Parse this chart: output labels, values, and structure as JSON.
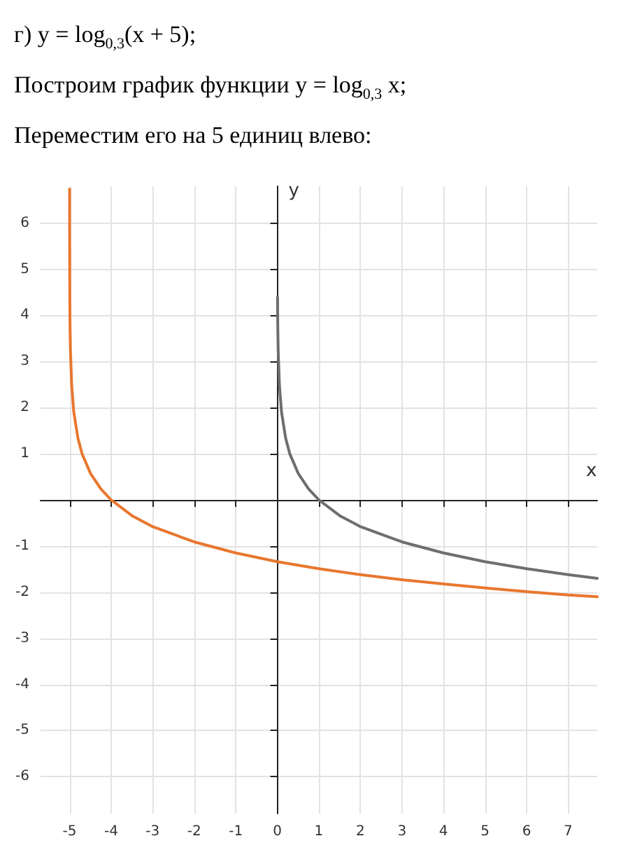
{
  "chart_data": {
    "type": "line",
    "title": "г) y = log$_{0,3}$(x + 5);",
    "subtitle": "Построим график функции y = log$_{0,3}$ x;",
    "annotations": [
      "Переместим его на 5 единиц влево:"
    ],
    "xlabel": "x",
    "ylabel": "y",
    "xlim": [
      -5.7,
      7.7
    ],
    "ylim": [
      -6.8,
      6.8
    ],
    "xticks": [
      -5,
      -4,
      -3,
      -2,
      -1,
      0,
      1,
      2,
      3,
      4,
      5,
      6,
      7
    ],
    "yticks": [
      -6,
      -5,
      -4,
      -3,
      -2,
      -1,
      1,
      2,
      3,
      4,
      5,
      6
    ],
    "grid": true,
    "marker": "none",
    "line_style": "solid",
    "series": [
      {
        "color": "#6e6e6e",
        "x": [
          0.005,
          0.01,
          0.02,
          0.05,
          0.1,
          0.2,
          0.3,
          0.5,
          0.75,
          1,
          1.5,
          2,
          3,
          4,
          5,
          6,
          7,
          7.7
        ],
        "values": [
          4.4,
          3.82,
          3.25,
          2.49,
          1.91,
          1.34,
          1.0,
          0.58,
          0.24,
          0,
          -0.34,
          -0.58,
          -0.91,
          -1.15,
          -1.34,
          -1.49,
          -1.62,
          -1.7
        ]
      },
      {
        "color": "#e8772e",
        "x": [
          -4.9997,
          -4.999,
          -4.995,
          -4.99,
          -4.98,
          -4.95,
          -4.9,
          -4.8,
          -4.7,
          -4.5,
          -4.25,
          -4,
          -3.5,
          -3,
          -2,
          -1,
          0,
          1,
          2,
          3,
          4,
          5,
          6,
          7,
          7.7
        ],
        "values": [
          6.74,
          5.74,
          4.4,
          3.82,
          3.25,
          2.49,
          1.91,
          1.34,
          1.0,
          0.58,
          0.24,
          0,
          -0.34,
          -0.58,
          -0.91,
          -1.15,
          -1.34,
          -1.49,
          -1.62,
          -1.73,
          -1.82,
          -1.91,
          -1.99,
          -2.06,
          -2.1
        ]
      }
    ]
  }
}
